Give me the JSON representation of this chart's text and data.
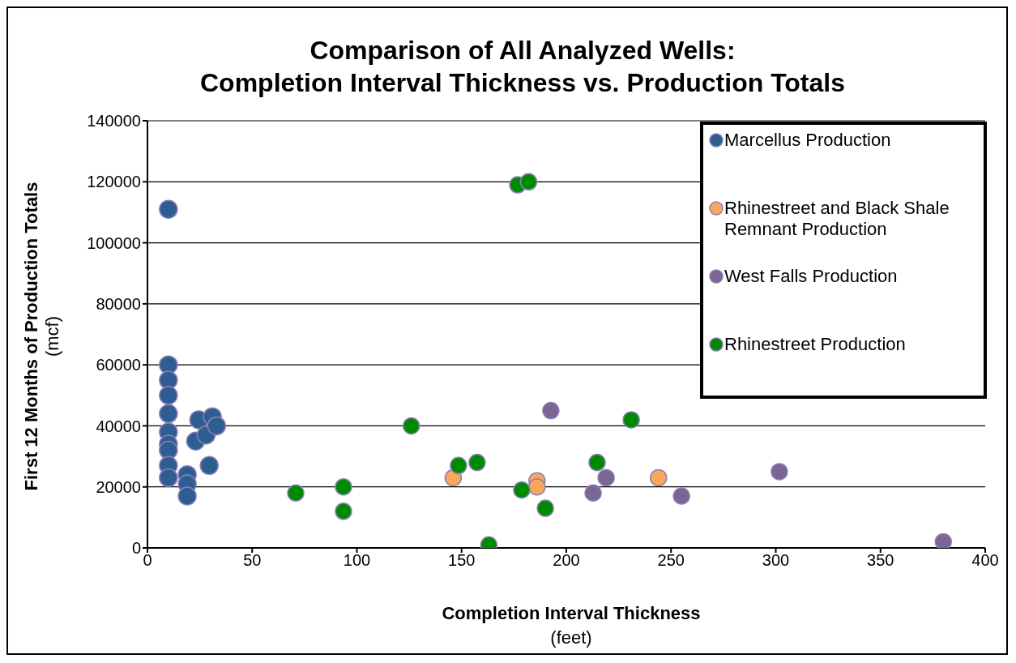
{
  "chart_data": {
    "type": "scatter",
    "title": "Comparison of All Analyzed Wells:\nCompletion Interval Thickness vs. Production Totals",
    "xlabel": "Completion Interval Thickness\n(feet)",
    "ylabel": "First 12 Months of Production Totals\n(mcf)",
    "xlim": [
      0,
      400
    ],
    "xticks": [
      0,
      50,
      100,
      150,
      200,
      250,
      300,
      350,
      400
    ],
    "ylim": [
      0,
      140000
    ],
    "yticks": [
      0,
      20000,
      40000,
      60000,
      80000,
      100000,
      120000,
      140000
    ],
    "grid": "y",
    "legend": "top right",
    "marker": "circle",
    "series": [
      {
        "name": "Marcellus Production",
        "color": "#2e5d91",
        "x": [
          10,
          10,
          10,
          10,
          10,
          10,
          10,
          10,
          10,
          10,
          19,
          19,
          19,
          23,
          24.5,
          28,
          31,
          33,
          29.5
        ],
        "values": [
          111000,
          60000,
          55000,
          50000,
          44000,
          38000,
          34000,
          32000,
          27000,
          23000,
          24000,
          21000,
          17000,
          35000,
          42000,
          37000,
          43000,
          40000,
          27000
        ]
      },
      {
        "name": "Rhinestreet and Black Shale Remnant Production",
        "color": "#f9a85a",
        "x": [
          146,
          186,
          186,
          244
        ],
        "values": [
          23000,
          22000,
          20000,
          23000
        ]
      },
      {
        "name": "West Falls Production",
        "color": "#7a6594",
        "x": [
          192.6,
          219,
          212.8,
          255,
          301.7,
          380
        ],
        "values": [
          45000,
          23000,
          18000,
          17000,
          25000,
          2000
        ]
      },
      {
        "name": "Rhinestreet Production",
        "color": "#008a00",
        "x": [
          70.8,
          93.6,
          93.6,
          126,
          148.5,
          157.4,
          178.7,
          190,
          163,
          214.7,
          231,
          176.8,
          182
        ],
        "values": [
          18000,
          20000,
          12000,
          40000,
          27000,
          28000,
          19000,
          13000,
          1000,
          28000,
          42000,
          119000,
          120000
        ]
      }
    ]
  }
}
